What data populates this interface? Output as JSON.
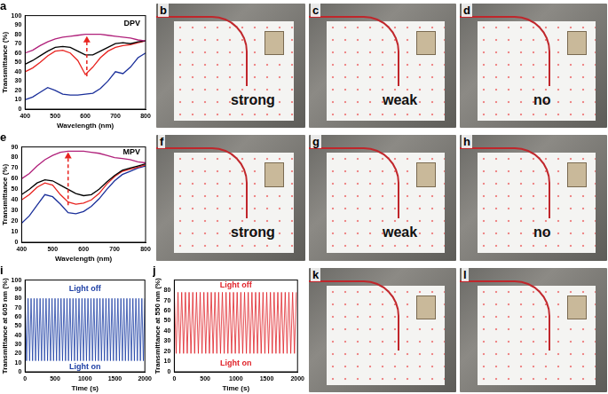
{
  "chart_data": [
    {
      "type": "line",
      "title": "a",
      "x_label": "Wavelength (nm)",
      "y_label": "Transmittance (%)",
      "x": [
        400,
        425,
        450,
        475,
        500,
        525,
        550,
        575,
        600,
        625,
        650,
        675,
        700,
        725,
        750,
        775,
        800
      ],
      "series": [
        {
          "color": "#b0207a",
          "values": [
            60,
            63,
            68,
            72,
            75,
            77,
            78,
            79,
            80,
            80,
            80,
            79,
            78,
            77,
            76,
            74,
            73
          ]
        },
        {
          "color": "#000000",
          "values": [
            48,
            52,
            57,
            62,
            66,
            67,
            66,
            62,
            58,
            58,
            62,
            66,
            70,
            71,
            70,
            72,
            73
          ]
        },
        {
          "color": "#e8231f",
          "values": [
            40,
            44,
            50,
            57,
            62,
            63,
            60,
            52,
            37,
            45,
            55,
            62,
            66,
            68,
            69,
            71,
            73
          ]
        },
        {
          "color": "#1a2f9a",
          "values": [
            10,
            13,
            18,
            23,
            20,
            16,
            15,
            15,
            16,
            17,
            22,
            30,
            40,
            38,
            45,
            55,
            60
          ]
        }
      ],
      "xlim": [
        400,
        800
      ],
      "xticks": [
        400,
        500,
        600,
        700,
        800
      ],
      "ylim": [
        0,
        100
      ],
      "yticks": [
        0,
        10,
        20,
        30,
        40,
        50,
        60,
        70,
        80,
        90,
        100
      ],
      "annotations": [
        {
          "text": "DPV",
          "x": 755,
          "y": 92,
          "color": "#000000"
        }
      ],
      "arrow": {
        "x": 605,
        "y": [
          35,
          78
        ],
        "color": "#e8231f"
      }
    },
    {
      "type": "line",
      "title": "e",
      "x_label": "Wavelength (nm)",
      "y_label": "Transmittance (%)",
      "x": [
        400,
        425,
        450,
        475,
        500,
        525,
        550,
        575,
        600,
        625,
        650,
        675,
        700,
        725,
        750,
        775,
        800
      ],
      "series": [
        {
          "color": "#b0207a",
          "values": [
            60,
            65,
            72,
            78,
            82,
            85,
            86,
            86,
            86,
            85,
            84,
            82,
            80,
            79,
            78,
            76,
            75
          ]
        },
        {
          "color": "#000000",
          "values": [
            45,
            50,
            56,
            59,
            58,
            54,
            50,
            46,
            44,
            45,
            50,
            57,
            63,
            68,
            70,
            72,
            74
          ]
        },
        {
          "color": "#e8231f",
          "values": [
            40,
            45,
            52,
            56,
            54,
            45,
            38,
            36,
            37,
            40,
            46,
            55,
            62,
            67,
            69,
            71,
            73
          ]
        },
        {
          "color": "#1a2f9a",
          "values": [
            18,
            25,
            35,
            45,
            43,
            36,
            28,
            27,
            29,
            34,
            41,
            50,
            58,
            64,
            67,
            70,
            72
          ]
        }
      ],
      "xlim": [
        400,
        800
      ],
      "xticks": [
        400,
        500,
        600,
        700,
        800
      ],
      "ylim": [
        0,
        90
      ],
      "yticks": [
        0,
        10,
        20,
        30,
        40,
        50,
        60,
        70,
        80,
        90
      ],
      "annotations": [
        {
          "text": "MPV",
          "x": 755,
          "y": 85,
          "color": "#000000"
        }
      ],
      "arrow": {
        "x": 550,
        "y": [
          35,
          85
        ],
        "color": "#e8231f"
      }
    },
    {
      "type": "line",
      "title": "i",
      "x_label": "Time (s)",
      "y_label": "Transmittance at 605 nm (%)",
      "x": [
        0,
        25,
        50,
        75,
        100,
        125,
        150,
        175,
        200,
        225,
        250,
        275,
        300,
        325,
        350,
        375,
        400,
        425,
        450,
        475,
        500,
        525,
        550,
        575,
        600,
        625,
        650,
        675,
        700,
        725,
        750,
        775,
        800,
        825,
        850,
        875,
        900,
        925,
        950,
        975,
        1000,
        1025,
        1050,
        1075,
        1100,
        1125,
        1150,
        1175,
        1200,
        1225,
        1250,
        1275,
        1300,
        1325,
        1350,
        1375,
        1400,
        1425,
        1450,
        1475,
        1500,
        1525,
        1550,
        1575,
        1600,
        1625,
        1650,
        1675,
        1700,
        1725,
        1750,
        1775,
        1800,
        1825,
        1850,
        1875,
        1900,
        1925,
        1950,
        1975,
        2000
      ],
      "series": [
        {
          "color": "#1d3fa5",
          "values": [
            80,
            12,
            80,
            12,
            80,
            12,
            80,
            12,
            80,
            12,
            80,
            12,
            80,
            12,
            80,
            12,
            80,
            12,
            80,
            12,
            80,
            12,
            80,
            12,
            80,
            12,
            80,
            12,
            80,
            12,
            80,
            12,
            80,
            12,
            80,
            12,
            80,
            12,
            80,
            12,
            80,
            12,
            80,
            12,
            80,
            12,
            80,
            12,
            80,
            12,
            80,
            12,
            80,
            12,
            80,
            12,
            80,
            12,
            80,
            12,
            80,
            12,
            80,
            12,
            80,
            12,
            80,
            12,
            80,
            12,
            80,
            12,
            80,
            12,
            80,
            12,
            80,
            12,
            80,
            12,
            80
          ]
        }
      ],
      "xlim": [
        0,
        2000
      ],
      "xticks": [
        0,
        500,
        1000,
        1500,
        2000
      ],
      "ylim": [
        0,
        100
      ],
      "yticks": [
        0,
        10,
        20,
        30,
        40,
        50,
        60,
        70,
        80,
        90,
        100
      ],
      "annotations": [
        {
          "text": "Light off",
          "x": 1000,
          "y": 90,
          "color": "#1d3fa5"
        },
        {
          "text": "Light on",
          "x": 1000,
          "y": 5,
          "color": "#1d3fa5"
        }
      ]
    },
    {
      "type": "line",
      "title": "j",
      "x_label": "Time (s)",
      "y_label": "Transmittance at 550 nm (%)",
      "x": [
        0,
        30,
        60,
        90,
        120,
        150,
        180,
        210,
        240,
        270,
        300,
        330,
        360,
        390,
        420,
        450,
        480,
        510,
        540,
        570,
        600,
        630,
        660,
        690,
        720,
        750,
        780,
        810,
        840,
        870,
        900,
        930,
        960,
        990,
        1020,
        1050,
        1080,
        1110,
        1140,
        1170,
        1200,
        1230,
        1260,
        1290,
        1320,
        1350,
        1380,
        1410,
        1440,
        1470,
        1500,
        1530,
        1560,
        1590,
        1620,
        1650,
        1680,
        1710,
        1740,
        1770,
        1800,
        1830,
        1860,
        1890,
        1920,
        1950,
        1980
      ],
      "series": [
        {
          "color": "#e0232a",
          "values": [
            78,
            18,
            78,
            18,
            78,
            18,
            78,
            18,
            78,
            18,
            78,
            18,
            78,
            18,
            78,
            18,
            78,
            18,
            78,
            18,
            78,
            18,
            78,
            18,
            78,
            18,
            78,
            18,
            78,
            18,
            78,
            18,
            78,
            18,
            78,
            18,
            78,
            18,
            78,
            18,
            78,
            18,
            78,
            18,
            78,
            18,
            78,
            18,
            78,
            18,
            78,
            18,
            78,
            18,
            78,
            18,
            78,
            18,
            78,
            18,
            78,
            18,
            78,
            18,
            78,
            18,
            78
          ]
        }
      ],
      "xlim": [
        0,
        2000
      ],
      "xticks": [
        0,
        500,
        1000,
        1500,
        2000
      ],
      "ylim": [
        0,
        90
      ],
      "yticks": [
        0,
        10,
        20,
        30,
        40,
        50,
        60,
        70,
        80
      ],
      "annotations": [
        {
          "text": "Light off",
          "x": 1000,
          "y": 85,
          "color": "#e0232a"
        },
        {
          "text": "Light on",
          "x": 1000,
          "y": 8,
          "color": "#e0232a"
        }
      ]
    }
  ],
  "photos": [
    {
      "label": "b",
      "caption": "strong"
    },
    {
      "label": "c",
      "caption": "weak"
    },
    {
      "label": "d",
      "caption": "no"
    },
    {
      "label": "f",
      "caption": "strong"
    },
    {
      "label": "g",
      "caption": "weak"
    },
    {
      "label": "h",
      "caption": "no"
    },
    {
      "label": "k"
    },
    {
      "label": "l"
    }
  ]
}
